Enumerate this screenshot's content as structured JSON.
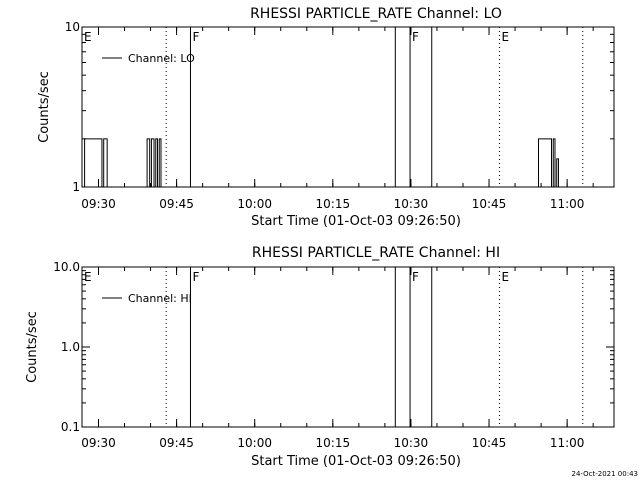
{
  "footer": {
    "timestamp": "24-Oct-2021 00:43"
  },
  "chart_data": [
    {
      "type": "line",
      "title": "RHESSI PARTICLE_RATE Channel: LO",
      "xlabel": "Start Time (01-Oct-03 09:26:50)",
      "ylabel": "Counts/sec",
      "yscale": "log",
      "ylim": [
        1,
        10
      ],
      "xlim": [
        "09:26:50",
        "11:09:00"
      ],
      "x_ticks": [
        "09:30",
        "09:45",
        "10:00",
        "10:15",
        "10:30",
        "10:45",
        "11:00"
      ],
      "y_ticks": [
        "1",
        "10"
      ],
      "legend": {
        "label": "Channel: LO",
        "placement": "top-left"
      },
      "markers": [
        {
          "time": "09:26:50",
          "label": "E",
          "style": "solid"
        },
        {
          "time": "09:43:00",
          "label": "",
          "style": "dotted"
        },
        {
          "time": "09:47:40",
          "label": "F",
          "style": "solid"
        },
        {
          "time": "10:27:00",
          "label": "",
          "style": "solid"
        },
        {
          "time": "10:29:50",
          "label": "F",
          "style": "solid"
        },
        {
          "time": "10:34:00",
          "label": "",
          "style": "solid"
        },
        {
          "time": "10:47:00",
          "label": "E",
          "style": "dotted"
        },
        {
          "time": "11:03:00",
          "label": "",
          "style": "dotted"
        }
      ],
      "series": [
        {
          "name": "Channel: LO",
          "points": [
            [
              "09:26:50",
              1
            ],
            [
              "09:27:20",
              2
            ],
            [
              "09:30:20",
              2
            ],
            [
              "09:30:40",
              1
            ],
            [
              "09:31:00",
              2
            ],
            [
              "09:31:20",
              2
            ],
            [
              "09:31:40",
              1
            ],
            [
              "09:39:00",
              1
            ],
            [
              "09:39:20",
              2
            ],
            [
              "09:39:50",
              1
            ],
            [
              "09:40:10",
              2
            ],
            [
              "09:40:40",
              1
            ],
            [
              "09:41:00",
              2
            ],
            [
              "09:41:20",
              1
            ],
            [
              "09:41:40",
              2
            ],
            [
              "09:42:00",
              1
            ],
            [
              "10:54:00",
              1
            ],
            [
              "10:54:30",
              2
            ],
            [
              "10:56:30",
              2
            ],
            [
              "10:57:00",
              1
            ],
            [
              "10:57:20",
              2
            ],
            [
              "10:57:40",
              1
            ],
            [
              "10:58:00",
              1.5
            ],
            [
              "10:58:20",
              1
            ]
          ]
        }
      ]
    },
    {
      "type": "line",
      "title": "RHESSI PARTICLE_RATE Channel: HI",
      "xlabel": "Start Time (01-Oct-03 09:26:50)",
      "ylabel": "Counts/sec",
      "yscale": "log",
      "ylim": [
        0.1,
        10
      ],
      "xlim": [
        "09:26:50",
        "11:09:00"
      ],
      "x_ticks": [
        "09:30",
        "09:45",
        "10:00",
        "10:15",
        "10:30",
        "10:45",
        "11:00"
      ],
      "y_ticks": [
        "0.1",
        "1.0",
        "10.0"
      ],
      "legend": {
        "label": "Channel: HI",
        "placement": "top-left"
      },
      "markers": [
        {
          "time": "09:26:50",
          "label": "E",
          "style": "solid"
        },
        {
          "time": "09:43:00",
          "label": "",
          "style": "dotted"
        },
        {
          "time": "09:47:40",
          "label": "F",
          "style": "solid"
        },
        {
          "time": "10:27:00",
          "label": "",
          "style": "solid"
        },
        {
          "time": "10:29:50",
          "label": "F",
          "style": "solid"
        },
        {
          "time": "10:34:00",
          "label": "",
          "style": "solid"
        },
        {
          "time": "10:47:00",
          "label": "E",
          "style": "dotted"
        },
        {
          "time": "11:03:00",
          "label": "",
          "style": "dotted"
        }
      ],
      "series": [
        {
          "name": "Channel: HI",
          "points": []
        }
      ]
    }
  ]
}
